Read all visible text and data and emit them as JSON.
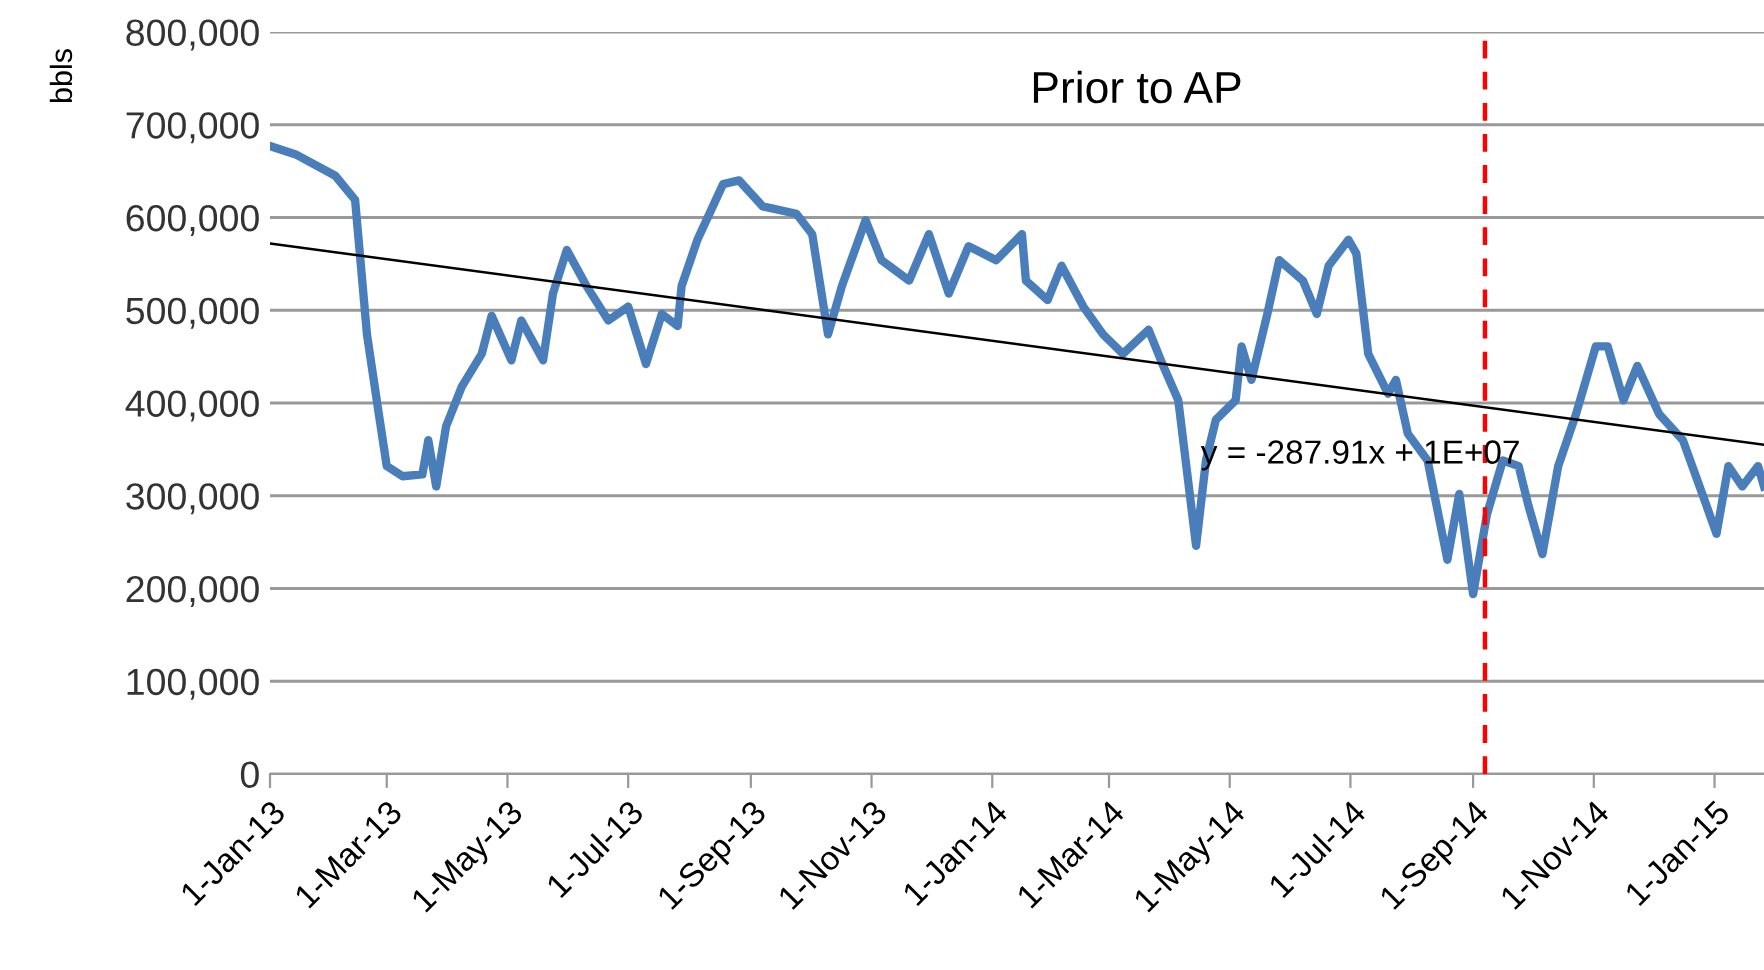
{
  "chart_data": {
    "type": "line",
    "ylabel": "bbls",
    "grid": "y",
    "line_style": "solid",
    "annotations": [
      "Prior to AP",
      "y = -287.91x + 1E+07"
    ],
    "xlim": [
      "2013-01-01",
      "2015-01-26"
    ],
    "ylim": [
      0,
      800000
    ],
    "xticks": [
      {
        "value": "2013-01-01",
        "label": "1-Jan-13"
      },
      {
        "value": "2013-03-01",
        "label": "1-Mar-13"
      },
      {
        "value": "2013-05-01",
        "label": "1-May-13"
      },
      {
        "value": "2013-07-01",
        "label": "1-Jul-13"
      },
      {
        "value": "2013-09-01",
        "label": "1-Sep-13"
      },
      {
        "value": "2013-11-01",
        "label": "1-Nov-13"
      },
      {
        "value": "2014-01-01",
        "label": "1-Jan-14"
      },
      {
        "value": "2014-03-01",
        "label": "1-Mar-14"
      },
      {
        "value": "2014-05-01",
        "label": "1-May-14"
      },
      {
        "value": "2014-07-01",
        "label": "1-Jul-14"
      },
      {
        "value": "2014-09-01",
        "label": "1-Sep-14"
      },
      {
        "value": "2014-11-01",
        "label": "1-Nov-14"
      },
      {
        "value": "2015-01-01",
        "label": "1-Jan-15"
      }
    ],
    "yticks": [
      0,
      {
        "value": 100000,
        "label": "100,000"
      },
      {
        "value": 200000,
        "label": "200,000"
      },
      {
        "value": 300000,
        "label": "300,000"
      },
      {
        "value": 400000,
        "label": "400,000"
      },
      {
        "value": 500000,
        "label": "500,000"
      },
      {
        "value": 600000,
        "label": "600,000"
      },
      {
        "value": 700000,
        "label": "700,000"
      },
      {
        "value": 800000,
        "label": "800,000"
      }
    ],
    "ref_lines": [
      {
        "axis": "x",
        "value": "2014-09-07",
        "color": "#ff0000",
        "line_style": "dashed"
      }
    ],
    "series": [
      {
        "color": "#4a7ebb",
        "x": [
          "2013-01-01",
          "2013-01-14",
          "2013-02-03",
          "2013-02-13",
          "2013-02-19",
          "2013-02-25",
          "2013-03-01",
          "2013-03-09",
          "2013-03-19",
          "2013-03-22",
          "2013-03-26",
          "2013-03-31",
          "2013-04-08",
          "2013-04-18",
          "2013-04-23",
          "2013-05-03",
          "2013-05-08",
          "2013-05-19",
          "2013-05-24",
          "2013-05-31",
          "2013-06-10",
          "2013-06-21",
          "2013-07-01",
          "2013-07-10",
          "2013-07-18",
          "2013-07-26",
          "2013-07-28",
          "2013-08-05",
          "2013-08-18",
          "2013-08-26",
          "2013-09-07",
          "2013-09-24",
          "2013-10-02",
          "2013-10-10",
          "2013-10-17",
          "2013-10-29",
          "2013-11-06",
          "2013-11-20",
          "2013-11-30",
          "2013-12-10",
          "2013-12-20",
          "2014-01-03",
          "2014-01-16",
          "2014-01-18",
          "2014-01-29",
          "2014-02-05",
          "2014-02-16",
          "2014-02-26",
          "2014-03-08",
          "2014-03-21",
          "2014-03-28",
          "2014-04-05",
          "2014-04-14",
          "2014-04-19",
          "2014-04-24",
          "2014-05-04",
          "2014-05-07",
          "2014-05-12",
          "2014-05-20",
          "2014-05-26",
          "2014-06-07",
          "2014-06-14",
          "2014-06-20",
          "2014-06-30",
          "2014-07-04",
          "2014-07-10",
          "2014-07-20",
          "2014-07-24",
          "2014-07-30",
          "2014-08-09",
          "2014-08-19",
          "2014-08-25",
          "2014-09-01",
          "2014-09-08",
          "2014-09-16",
          "2014-09-24",
          "2014-09-29",
          "2014-10-06",
          "2014-10-14",
          "2014-10-23",
          "2014-11-02",
          "2014-11-08",
          "2014-11-16",
          "2014-11-23",
          "2014-12-04",
          "2014-12-16",
          "2014-12-28",
          "2015-01-02",
          "2015-01-08",
          "2015-01-15",
          "2015-01-23",
          "2015-01-26"
        ],
        "values": [
          677000,
          668000,
          645000,
          619000,
          474000,
          388000,
          332000,
          321000,
          323000,
          360000,
          310000,
          375000,
          418000,
          453000,
          494000,
          446000,
          489000,
          446000,
          518000,
          565000,
          526000,
          489000,
          504000,
          442000,
          496000,
          483000,
          526000,
          576000,
          636000,
          640000,
          612000,
          604000,
          582000,
          474000,
          526000,
          597000,
          554000,
          532000,
          582000,
          518000,
          569000,
          554000,
          582000,
          532000,
          511000,
          548000,
          504000,
          474000,
          453000,
          479000,
          442000,
          403000,
          246000,
          338000,
          382000,
          403000,
          461000,
          425000,
          496000,
          554000,
          532000,
          496000,
          548000,
          576000,
          561000,
          453000,
          410000,
          425000,
          367000,
          338000,
          231000,
          302000,
          194000,
          280000,
          338000,
          332000,
          289000,
          237000,
          332000,
          388000,
          461000,
          461000,
          403000,
          440000,
          388000,
          360000,
          289000,
          259000,
          332000,
          310000,
          332000,
          310000
        ]
      },
      {
        "type": "line",
        "color": "#000000",
        "x": [
          "2013-01-01",
          "2015-01-26"
        ],
        "values": [
          572000,
          355000
        ]
      }
    ]
  }
}
